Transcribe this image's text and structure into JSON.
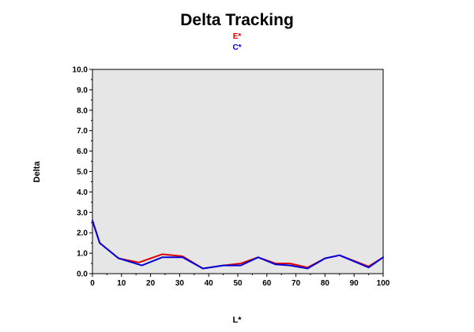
{
  "chart_data": {
    "type": "line",
    "title": "Delta Tracking",
    "xlabel": "L*",
    "ylabel": "Delta",
    "xlim": [
      0,
      100
    ],
    "ylim": [
      0,
      10
    ],
    "x_ticks": [
      "0",
      "10",
      "20",
      "30",
      "40",
      "50",
      "60",
      "70",
      "80",
      "90",
      "100"
    ],
    "y_ticks": [
      "0.0",
      "1.0",
      "2.0",
      "3.0",
      "4.0",
      "5.0",
      "6.0",
      "7.0",
      "8.0",
      "9.0",
      "10.0"
    ],
    "grid": false,
    "legend_position": "top-center",
    "background_color": "#e6e6e6",
    "series": [
      {
        "name": "E*",
        "color": "#dd0000",
        "points": [
          [
            0,
            2.6
          ],
          [
            2.5,
            1.5
          ],
          [
            9,
            0.75
          ],
          [
            16,
            0.55
          ],
          [
            24,
            0.95
          ],
          [
            31,
            0.85
          ],
          [
            38,
            0.25
          ],
          [
            45,
            0.4
          ],
          [
            51,
            0.5
          ],
          [
            57,
            0.8
          ],
          [
            63,
            0.5
          ],
          [
            68,
            0.5
          ],
          [
            74,
            0.3
          ],
          [
            80,
            0.75
          ],
          [
            85,
            0.9
          ],
          [
            95,
            0.35
          ],
          [
            100,
            0.8
          ]
        ]
      },
      {
        "name": "C*",
        "color": "#0000dd",
        "points": [
          [
            0,
            2.6
          ],
          [
            2.5,
            1.5
          ],
          [
            9,
            0.75
          ],
          [
            17,
            0.4
          ],
          [
            24,
            0.8
          ],
          [
            31,
            0.8
          ],
          [
            38,
            0.25
          ],
          [
            45,
            0.4
          ],
          [
            51,
            0.4
          ],
          [
            57,
            0.8
          ],
          [
            63,
            0.45
          ],
          [
            68,
            0.4
          ],
          [
            74,
            0.25
          ],
          [
            80,
            0.75
          ],
          [
            85,
            0.9
          ],
          [
            95,
            0.3
          ],
          [
            100,
            0.8
          ]
        ]
      }
    ]
  }
}
